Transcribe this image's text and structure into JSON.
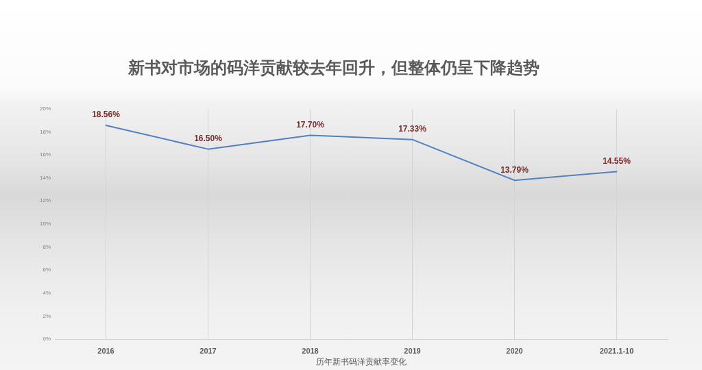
{
  "chart_data": {
    "type": "line",
    "title": "新书对市场的码洋贡献较去年回升，但整体仍呈下降趋势",
    "xlabel": "历年新书码洋贡献率变化",
    "categories": [
      "2016",
      "2017",
      "2018",
      "2019",
      "2020",
      "2021.1-10"
    ],
    "series": [
      {
        "color": "#5081c0",
        "values": [
          18.56,
          16.5,
          17.7,
          17.33,
          13.79,
          14.55
        ],
        "value_labels": [
          "18.56%",
          "16.50%",
          "17.70%",
          "17.33%",
          "13.79%",
          "14.55%"
        ]
      }
    ],
    "ylim": [
      0,
      20
    ],
    "yticks": [
      {
        "value": 0,
        "label": "0%"
      },
      {
        "value": 2,
        "label": "2%"
      },
      {
        "value": 4,
        "label": "4%"
      },
      {
        "value": 6,
        "label": "6%"
      },
      {
        "value": 8,
        "label": "8%"
      },
      {
        "value": 10,
        "label": "10%"
      },
      {
        "value": 12,
        "label": "12%"
      },
      {
        "value": 14,
        "label": "14%"
      },
      {
        "value": 16,
        "label": "16%"
      },
      {
        "value": 18,
        "label": "18%"
      },
      {
        "value": 20,
        "label": "20%"
      }
    ],
    "grid": "x"
  }
}
